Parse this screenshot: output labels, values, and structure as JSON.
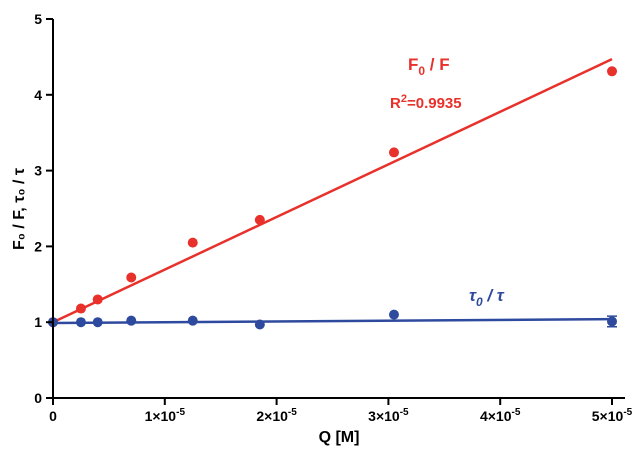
{
  "chart_data": {
    "type": "scatter",
    "xlabel": "Q [M]",
    "ylabel": "F₀ / F, τ₀ / τ",
    "xlim": [
      0,
      5e-05
    ],
    "ylim": [
      0,
      5
    ],
    "x_ticks": [
      {
        "value": 0,
        "mantissa": "0",
        "exp": ""
      },
      {
        "value": 1e-05,
        "mantissa": "1×10",
        "exp": "-5"
      },
      {
        "value": 2e-05,
        "mantissa": "2×10",
        "exp": "-5"
      },
      {
        "value": 3e-05,
        "mantissa": "3×10",
        "exp": "-5"
      },
      {
        "value": 4e-05,
        "mantissa": "4×10",
        "exp": "-5"
      },
      {
        "value": 5e-05,
        "mantissa": "5×10",
        "exp": "-5"
      }
    ],
    "y_ticks": [
      0,
      1,
      2,
      3,
      4,
      5
    ],
    "grid": false,
    "series": [
      {
        "name": "F₀ / F",
        "color": "#e8312b",
        "x": [
          0,
          2.5e-06,
          4e-06,
          7e-06,
          1.25e-05,
          1.85e-05,
          3.05e-05,
          5e-05
        ],
        "y": [
          1.0,
          1.18,
          1.3,
          1.59,
          2.05,
          2.35,
          3.24,
          4.31
        ],
        "fit": {
          "x0": 0,
          "y0": 1.0,
          "x1": 5e-05,
          "y1": 4.47
        }
      },
      {
        "name": "τ₀ / τ",
        "color": "#2e4a9e",
        "x": [
          0,
          2.5e-06,
          4e-06,
          7e-06,
          1.25e-05,
          1.85e-05,
          3.05e-05,
          5e-05
        ],
        "y": [
          1.0,
          1.0,
          1.0,
          1.02,
          1.02,
          0.97,
          1.1,
          1.01
        ],
        "err": [
          0,
          0,
          0,
          0,
          0,
          0,
          0,
          0.07
        ],
        "fit": {
          "x0": 0,
          "y0": 0.99,
          "x1": 5e-05,
          "y1": 1.04
        }
      }
    ],
    "annotations": {
      "f_ratio": {
        "base": "F",
        "sub": "0",
        "rest": " / F"
      },
      "r_squared": {
        "base": "R",
        "sup": "2",
        "rest": "=0.9935"
      },
      "tau_ratio": {
        "base": "τ",
        "sub": "0",
        "rest": " / τ"
      }
    }
  }
}
